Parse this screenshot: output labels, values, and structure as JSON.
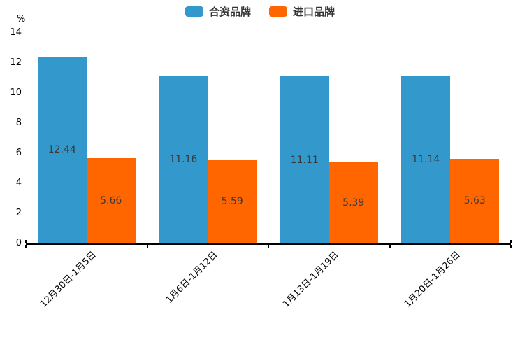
{
  "chart_data": {
    "type": "bar",
    "title": "",
    "categories": [
      "12月30日-1月5日",
      "1月6日-1月12日",
      "1月13日-1月19日",
      "1月20日-1月26日"
    ],
    "series": [
      {
        "name": "合资品牌",
        "color": "#3398CC",
        "values": [
          12.44,
          11.16,
          11.11,
          11.14
        ]
      },
      {
        "name": "进口品牌",
        "color": "#FF6600",
        "values": [
          5.66,
          5.59,
          5.39,
          5.63
        ]
      }
    ],
    "xlabel": "",
    "ylabel": "%",
    "ylim": [
      0,
      14
    ],
    "yticks": [
      0,
      2,
      4,
      6,
      8,
      10,
      12,
      14
    ],
    "legend_position": "top-center",
    "grid": false,
    "value_labels": true,
    "value_label_decimals": 2,
    "x_label_rotation_deg": 45
  },
  "colors": {
    "background": "#ffffff",
    "axis": "#000000",
    "value_label_text": "#3a3a3a",
    "legend_text": "#333333"
  }
}
